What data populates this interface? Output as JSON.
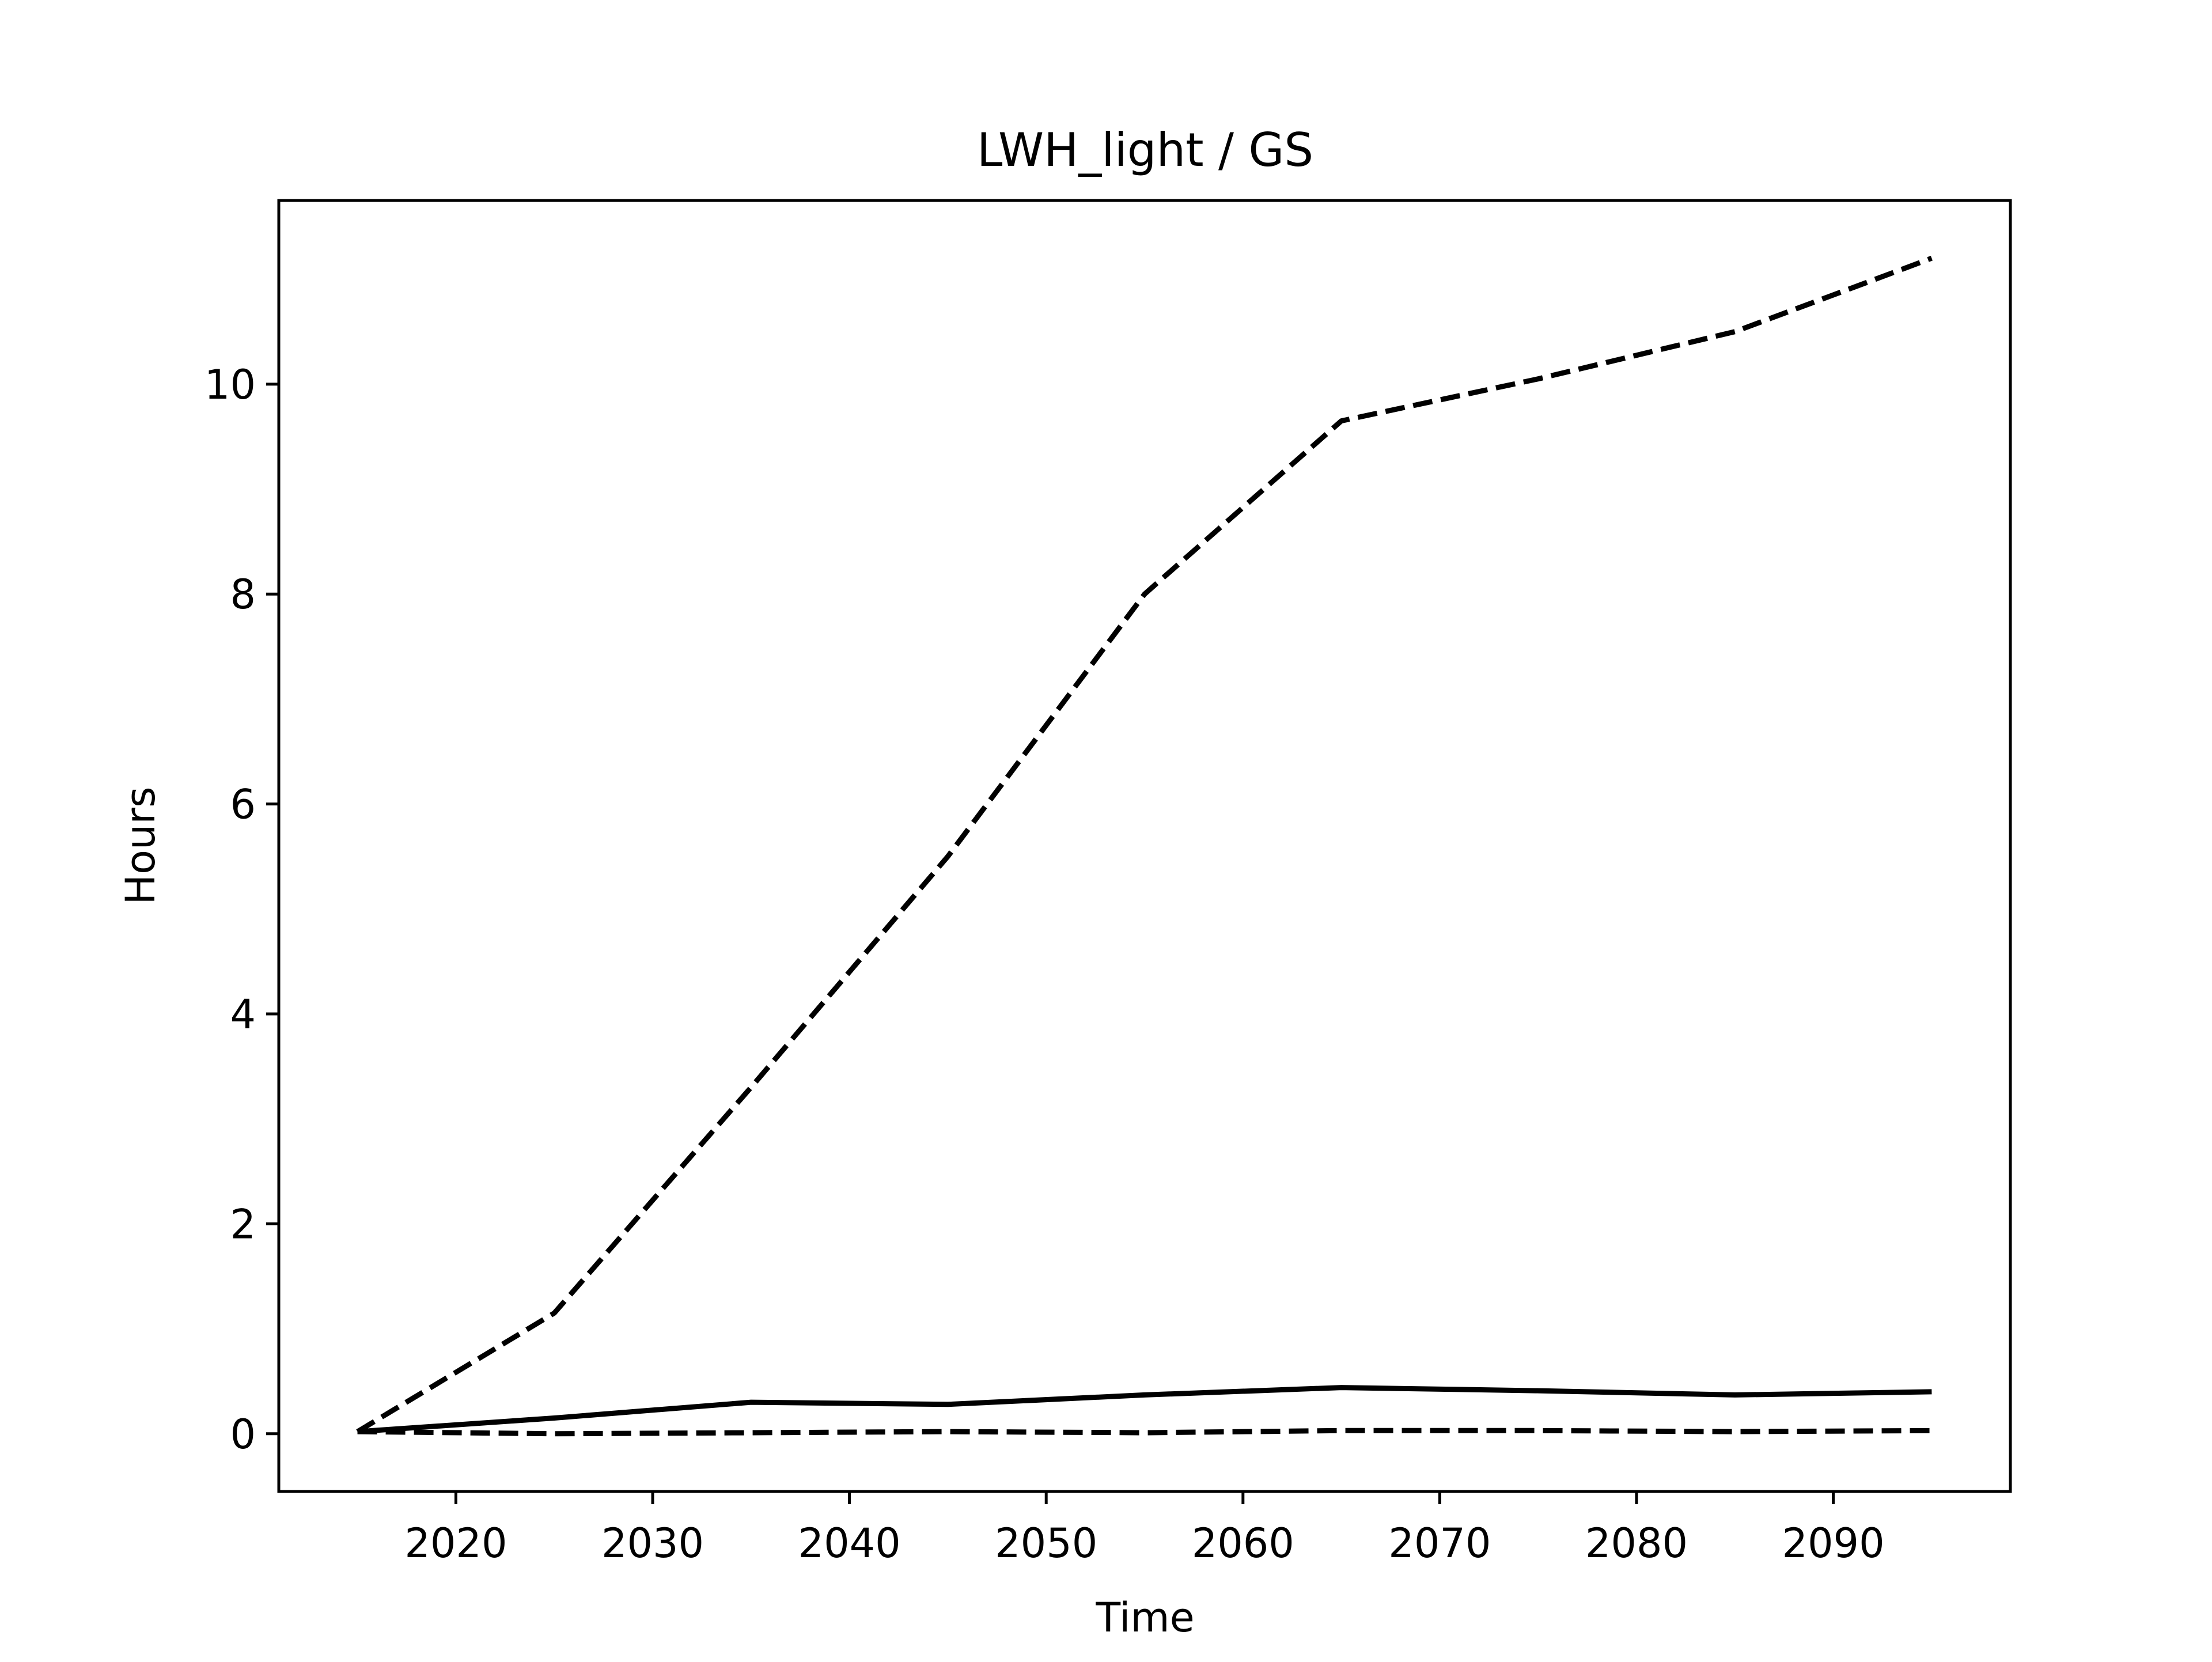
{
  "chart_data": {
    "type": "line",
    "title": "LWH_light / GS",
    "xlabel": "Time",
    "ylabel": "Hours",
    "xlim": [
      2011,
      2099
    ],
    "ylim": [
      -0.55,
      11.75
    ],
    "xticks": [
      2020,
      2030,
      2040,
      2050,
      2060,
      2070,
      2080,
      2090
    ],
    "yticks": [
      0,
      2,
      4,
      6,
      8,
      10
    ],
    "grid": false,
    "legend": "none",
    "series": [
      {
        "style": "dashed",
        "color": "#000000",
        "x": [
          2015,
          2025,
          2035,
          2045,
          2055,
          2065,
          2075,
          2085,
          2095
        ],
        "y": [
          0.02,
          1.15,
          3.3,
          5.5,
          8.0,
          9.65,
          10.05,
          10.5,
          11.2
        ]
      },
      {
        "style": "solid",
        "color": "#000000",
        "x": [
          2015,
          2025,
          2035,
          2045,
          2055,
          2065,
          2075,
          2085,
          2095
        ],
        "y": [
          0.02,
          0.15,
          0.3,
          0.28,
          0.37,
          0.44,
          0.41,
          0.37,
          0.4
        ]
      },
      {
        "style": "dashed",
        "color": "#000000",
        "x": [
          2015,
          2025,
          2035,
          2045,
          2055,
          2065,
          2075,
          2085,
          2095
        ],
        "y": [
          0.02,
          0.0,
          0.01,
          0.02,
          0.01,
          0.03,
          0.03,
          0.02,
          0.03
        ]
      }
    ]
  }
}
